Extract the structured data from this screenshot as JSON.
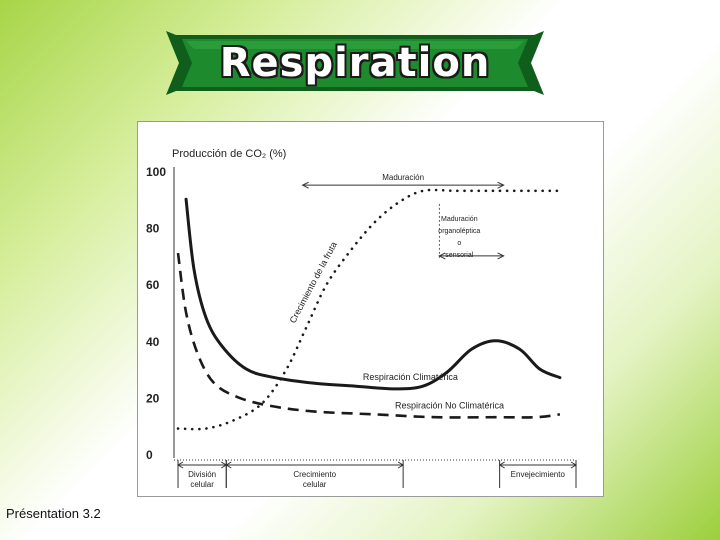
{
  "slide": {
    "title": "Respiration",
    "footer": "Présentation 3.2",
    "colors": {
      "banner_green": "#1e8a2e",
      "banner_dark": "#0f5e1b",
      "background_green": "#9ccf3c"
    }
  },
  "chart_data": {
    "type": "line",
    "title": "Producción de CO₂ (%)",
    "ylim": [
      0,
      100
    ],
    "yticks": [
      0,
      20,
      40,
      60,
      80,
      100
    ],
    "xlim": [
      0,
      100
    ],
    "grid": false,
    "series": [
      {
        "name": "Respiración Climatérica",
        "style": "solid",
        "x": [
          3,
          5,
          8,
          12,
          18,
          25,
          35,
          45,
          55,
          62,
          68,
          74,
          80,
          86,
          91,
          96
        ],
        "y": [
          90,
          65,
          48,
          38,
          30,
          27,
          25,
          24,
          23,
          24,
          29,
          37,
          40,
          37,
          30,
          27
        ]
      },
      {
        "name": "Respiración No Climatérica",
        "style": "dashed",
        "x": [
          1,
          3,
          6,
          10,
          16,
          24,
          35,
          50,
          65,
          80,
          90,
          96
        ],
        "y": [
          71,
          50,
          35,
          25,
          20,
          17,
          15,
          14,
          13,
          13,
          13,
          14
        ]
      },
      {
        "name": "Crecimiento de la fruta",
        "style": "dotted",
        "x": [
          1,
          8,
          15,
          22,
          28,
          33,
          38,
          44,
          50,
          56,
          62,
          70,
          80,
          90,
          96
        ],
        "y": [
          9,
          9,
          12,
          18,
          30,
          45,
          60,
          72,
          82,
          89,
          93,
          93,
          93,
          93,
          93
        ]
      }
    ],
    "phases": [
      {
        "label": "División celular",
        "x": [
          1,
          13
        ]
      },
      {
        "label": "Crecimiento celular",
        "x": [
          13,
          57
        ]
      },
      {
        "label": "Envejecimiento",
        "x": [
          81,
          100
        ]
      }
    ],
    "annotations": [
      {
        "label": "Maduración",
        "x": [
          32,
          82
        ],
        "y": 95
      },
      {
        "label": "Maduración organoléptica o sensorial",
        "x": [
          66,
          82
        ],
        "y": 70
      }
    ]
  }
}
